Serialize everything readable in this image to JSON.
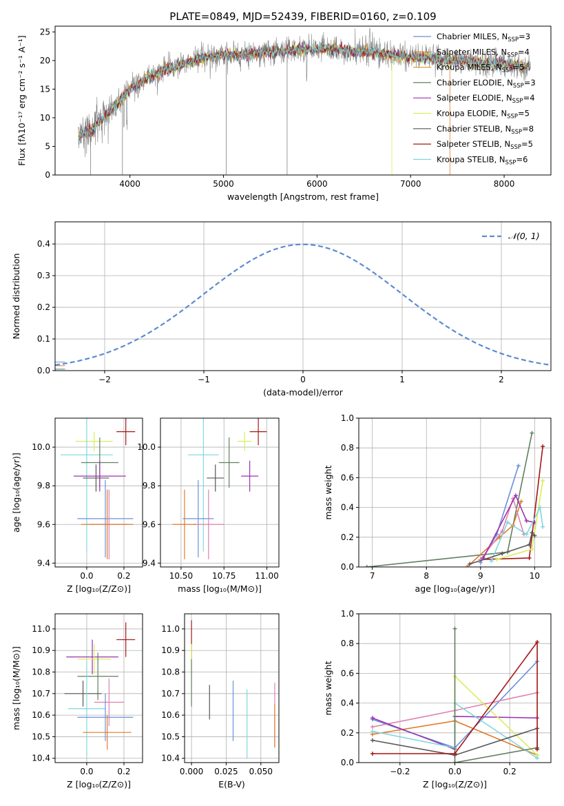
{
  "colors": {
    "chabrier_miles": "#6a8fd8",
    "salpeter_miles": "#e07b2b",
    "kroupa_miles": "#5a8a5a",
    "chabrier_elodie": "#5f7f5f",
    "salpeter_elodie": "#9b30b0",
    "kroupa_elodie": "#d8ee5a",
    "chabrier_stelib": "#555555",
    "salpeter_stelib": "#a31515",
    "kroupa_stelib": "#7fd6dd",
    "pink": "#e080b0",
    "gaussian": "#5b8bd0"
  },
  "chart_data": [
    {
      "id": "spectrum",
      "type": "line",
      "title": "PLATE=0849, MJD=52439, FIBERID=0160, z=0.109",
      "xlabel": "wavelength [Angstrom, rest frame]",
      "ylabel": "Flux [fλ10⁻¹⁷ erg cm⁻² s⁻¹ A⁻¹]",
      "xlim": [
        3200,
        8500
      ],
      "ylim": [
        0,
        26
      ],
      "xticks": [
        4000,
        5000,
        6000,
        7000,
        8000
      ],
      "yticks": [
        0,
        5,
        10,
        15,
        20,
        25
      ],
      "continuum": {
        "x": [
          3450,
          3600,
          3750,
          3900,
          4000,
          4200,
          4400,
          4600,
          4800,
          5000,
          5200,
          5400,
          5600,
          5800,
          6000,
          6200,
          6400,
          6600,
          6800,
          7000,
          7200,
          7400,
          7600,
          7800,
          8000,
          8200,
          8280
        ],
        "y": [
          7,
          8,
          10.5,
          13,
          15,
          17,
          18.5,
          19.5,
          20.5,
          21,
          21,
          21.5,
          21.5,
          22,
          22,
          22,
          21.5,
          21.5,
          21,
          20.5,
          20.5,
          20,
          20,
          19.5,
          19.5,
          19,
          19
        ]
      },
      "legend": [
        {
          "label": "Chabrier MILES, N",
          "sub": "SSP",
          "suffix": "=3",
          "color": "#6a8fd8"
        },
        {
          "label": "Salpeter MILES, N",
          "sub": "SSP",
          "suffix": "=4",
          "color": "#e07b2b"
        },
        {
          "label": "Kroupa MILES, N",
          "sub": "SSP",
          "suffix": "=5",
          "color": "#d8a030"
        },
        {
          "label": "Chabrier ELODIE, N",
          "sub": "SSP",
          "suffix": "=3",
          "color": "#5f7f5f"
        },
        {
          "label": "Salpeter ELODIE, N",
          "sub": "SSP",
          "suffix": "=4",
          "color": "#9b30b0"
        },
        {
          "label": "Kroupa ELODIE, N",
          "sub": "SSP",
          "suffix": "=5",
          "color": "#d8ee5a"
        },
        {
          "label": "Chabrier STELIB, N",
          "sub": "SSP",
          "suffix": "=8",
          "color": "#555555"
        },
        {
          "label": "Salpeter STELIB, N",
          "sub": "SSP",
          "suffix": "=5",
          "color": "#a31515"
        },
        {
          "label": "Kroupa STELIB, N",
          "sub": "SSP",
          "suffix": "=6",
          "color": "#7fd6dd"
        }
      ],
      "legend_position": "right"
    },
    {
      "id": "residuals",
      "type": "line",
      "xlabel": "(data-model)/error",
      "ylabel": "Normed distribution",
      "xlim": [
        -2.5,
        2.5
      ],
      "ylim": [
        0,
        0.47
      ],
      "xticks": [
        -2,
        -1,
        0,
        1,
        2
      ],
      "yticks": [
        0.0,
        0.1,
        0.2,
        0.3,
        0.4
      ],
      "grid": true,
      "legend": [
        {
          "label": "𝒩(0, 1)",
          "color": "#5b8bd0"
        }
      ],
      "legend_position": "top-right"
    },
    {
      "id": "age_vs_Z",
      "type": "scatter",
      "xlabel": "Z [log₁₀(Z/Z⊙)]",
      "ylabel": "age  [log₁₀(age/yr)]",
      "xlim": [
        -0.17,
        0.3
      ],
      "ylim": [
        9.38,
        10.15
      ],
      "xticks": [
        0.0,
        0.2
      ],
      "yticks": [
        9.4,
        9.6,
        9.8,
        10.0
      ],
      "grid": true,
      "points": [
        {
          "x": 0.21,
          "y": 10.08,
          "xerr": 0.05,
          "yerr": 0.07,
          "color": "#a31515"
        },
        {
          "x": 0.04,
          "y": 10.03,
          "xerr": 0.1,
          "yerr": 0.05,
          "color": "#d8ee5a"
        },
        {
          "x": 0.0,
          "y": 9.96,
          "xerr": 0.14,
          "yerr": 0.5,
          "color": "#7fd6dd"
        },
        {
          "x": 0.07,
          "y": 9.92,
          "xerr": 0.1,
          "yerr": 0.13,
          "color": "#5f7f5f"
        },
        {
          "x": 0.07,
          "y": 9.85,
          "xerr": 0.14,
          "yerr": 0.08,
          "color": "#9b30b0"
        },
        {
          "x": 0.05,
          "y": 9.84,
          "xerr": 0.07,
          "yerr": 0.07,
          "color": "#555555"
        },
        {
          "x": 0.1,
          "y": 9.63,
          "xerr": 0.15,
          "yerr": 0.2,
          "color": "#6a8fd8"
        },
        {
          "x": 0.12,
          "y": 9.6,
          "xerr": 0.1,
          "yerr": 0.18,
          "color": "#e080b0"
        },
        {
          "x": 0.11,
          "y": 9.6,
          "xerr": 0.14,
          "yerr": 0.18,
          "color": "#e07b2b"
        }
      ]
    },
    {
      "id": "age_vs_mass",
      "type": "scatter",
      "xlabel": "mass [log₁₀(M/M⊙)]",
      "ylabel": "",
      "xlim": [
        10.38,
        11.07
      ],
      "ylim": [
        9.38,
        10.15
      ],
      "xticks": [
        10.5,
        10.75,
        11.0
      ],
      "yticks": [
        9.4,
        9.6,
        9.8,
        10.0
      ],
      "grid": true,
      "points": [
        {
          "x": 10.95,
          "y": 10.08,
          "xerr": 0.05,
          "yerr": 0.07,
          "color": "#a31515"
        },
        {
          "x": 10.87,
          "y": 10.03,
          "xerr": 0.04,
          "yerr": 0.05,
          "color": "#d8ee5a"
        },
        {
          "x": 10.63,
          "y": 9.96,
          "xerr": 0.09,
          "yerr": 0.5,
          "color": "#7fd6dd"
        },
        {
          "x": 10.78,
          "y": 9.92,
          "xerr": 0.06,
          "yerr": 0.13,
          "color": "#5f7f5f"
        },
        {
          "x": 10.9,
          "y": 9.85,
          "xerr": 0.05,
          "yerr": 0.08,
          "color": "#9b30b0"
        },
        {
          "x": 10.7,
          "y": 9.84,
          "xerr": 0.05,
          "yerr": 0.07,
          "color": "#555555"
        },
        {
          "x": 10.6,
          "y": 9.63,
          "xerr": 0.09,
          "yerr": 0.2,
          "color": "#6a8fd8"
        },
        {
          "x": 10.66,
          "y": 9.6,
          "xerr": 0.09,
          "yerr": 0.18,
          "color": "#e080b0"
        },
        {
          "x": 10.52,
          "y": 9.6,
          "xerr": 0.07,
          "yerr": 0.18,
          "color": "#e07b2b"
        }
      ]
    },
    {
      "id": "weight_vs_age",
      "type": "line",
      "xlabel": "age  [log₁₀(age/yr)]",
      "ylabel": "mass weight",
      "xlim": [
        6.75,
        10.3
      ],
      "ylim": [
        0,
        1.0
      ],
      "xticks": [
        7,
        8,
        9,
        10
      ],
      "yticks": [
        0.0,
        0.2,
        0.4,
        0.6,
        0.8,
        1.0
      ],
      "grid": true,
      "series": [
        {
          "color": "#5f7f5f",
          "x": [
            6.9,
            9.5,
            9.95
          ],
          "y": [
            0.0,
            0.1,
            0.9
          ]
        },
        {
          "color": "#a31515",
          "x": [
            9.0,
            9.9,
            10.15
          ],
          "y": [
            0.05,
            0.06,
            0.81
          ]
        },
        {
          "color": "#6a8fd8",
          "x": [
            9.0,
            9.3,
            9.7
          ],
          "y": [
            0.03,
            0.22,
            0.68
          ]
        },
        {
          "color": "#e07b2b",
          "x": [
            8.75,
            9.35,
            9.6,
            9.75
          ],
          "y": [
            0.0,
            0.2,
            0.28,
            0.44
          ]
        },
        {
          "color": "#e080b0",
          "x": [
            9.0,
            9.4,
            9.6,
            9.8
          ],
          "y": [
            0.05,
            0.24,
            0.46,
            0.22
          ]
        },
        {
          "color": "#9b30b0",
          "x": [
            9.05,
            9.65,
            9.85,
            10.0
          ],
          "y": [
            0.06,
            0.48,
            0.31,
            0.3
          ]
        },
        {
          "color": "#d8ee5a",
          "x": [
            9.3,
            9.95,
            10.15
          ],
          "y": [
            0.05,
            0.12,
            0.58
          ]
        },
        {
          "color": "#7fd6dd",
          "x": [
            9.2,
            9.5,
            9.85,
            10.1,
            10.15
          ],
          "y": [
            0.04,
            0.3,
            0.22,
            0.4,
            0.27
          ]
        },
        {
          "color": "#555555",
          "x": [
            8.8,
            9.4,
            9.9,
            9.95,
            10.0
          ],
          "y": [
            0.02,
            0.09,
            0.15,
            0.23,
            0.21
          ]
        }
      ]
    },
    {
      "id": "mass_vs_Z",
      "type": "scatter",
      "xlabel": "Z [log₁₀(Z/Z⊙)]",
      "ylabel": "mass [log₁₀(M/M⊙)]",
      "xlim": [
        -0.17,
        0.3
      ],
      "ylim": [
        10.38,
        11.07
      ],
      "xticks": [
        0.0,
        0.2
      ],
      "yticks": [
        10.4,
        10.5,
        10.6,
        10.7,
        10.8,
        10.9,
        11.0
      ],
      "grid": true,
      "points": [
        {
          "x": 0.21,
          "y": 10.95,
          "xerr": 0.05,
          "yerr": 0.08,
          "color": "#a31515"
        },
        {
          "x": 0.03,
          "y": 10.87,
          "xerr": 0.14,
          "yerr": 0.08,
          "color": "#9b30b0"
        },
        {
          "x": 0.04,
          "y": 10.86,
          "xerr": 0.09,
          "yerr": 0.07,
          "color": "#d8ee5a"
        },
        {
          "x": 0.06,
          "y": 10.78,
          "xerr": 0.11,
          "yerr": 0.11,
          "color": "#5f7f5f"
        },
        {
          "x": -0.02,
          "y": 10.7,
          "xerr": 0.1,
          "yerr": 0.06,
          "color": "#555555"
        },
        {
          "x": 0.0,
          "y": 10.63,
          "xerr": 0.1,
          "yerr": 0.22,
          "color": "#7fd6dd"
        },
        {
          "x": 0.12,
          "y": 10.66,
          "xerr": 0.08,
          "yerr": 0.11,
          "color": "#e080b0"
        },
        {
          "x": 0.1,
          "y": 10.59,
          "xerr": 0.15,
          "yerr": 0.11,
          "color": "#6a8fd8"
        },
        {
          "x": 0.11,
          "y": 10.52,
          "xerr": 0.13,
          "yerr": 0.08,
          "color": "#e07b2b"
        }
      ]
    },
    {
      "id": "mass_vs_ebv",
      "type": "scatter",
      "xlabel": "E(B-V)",
      "ylabel": "",
      "xlim": [
        -0.005,
        0.063
      ],
      "ylim": [
        10.38,
        11.07
      ],
      "xticks": [
        0.0,
        0.025,
        0.05
      ],
      "yticks": [
        10.4,
        10.5,
        10.6,
        10.7,
        10.8,
        10.9,
        11.0
      ],
      "grid": true,
      "points": [
        {
          "x": 0.0,
          "y": 10.95,
          "xerr": 0,
          "yerr": 0.09,
          "color": "#a31515"
        },
        {
          "x": 0.0,
          "y": 10.86,
          "xerr": 0,
          "yerr": 0.07,
          "color": "#d8ee5a"
        },
        {
          "x": 0.0,
          "y": 10.75,
          "xerr": 0,
          "yerr": 0.11,
          "color": "#5f7f5f"
        },
        {
          "x": 0.013,
          "y": 10.66,
          "xerr": 0,
          "yerr": 0.08,
          "color": "#555555"
        },
        {
          "x": 0.03,
          "y": 10.62,
          "xerr": 0,
          "yerr": 0.14,
          "color": "#6a8fd8"
        },
        {
          "x": 0.04,
          "y": 10.56,
          "xerr": 0,
          "yerr": 0.16,
          "color": "#7fd6dd"
        },
        {
          "x": 0.06,
          "y": 10.6,
          "xerr": 0,
          "yerr": 0.15,
          "color": "#e080b0"
        },
        {
          "x": 0.06,
          "y": 10.55,
          "xerr": 0,
          "yerr": 0.1,
          "color": "#e07b2b"
        }
      ]
    },
    {
      "id": "weight_vs_Z",
      "type": "line",
      "xlabel": "Z [log₁₀(Z/Z⊙)]",
      "ylabel": "mass weight",
      "xlim": [
        -0.35,
        0.35
      ],
      "ylim": [
        0,
        1.0
      ],
      "xticks": [
        -0.2,
        0.0,
        0.2
      ],
      "yticks": [
        0.0,
        0.2,
        0.4,
        0.6,
        0.8,
        1.0
      ],
      "grid": true,
      "series": [
        {
          "color": "#6a8fd8",
          "x": [
            -0.3,
            0.0,
            0.3
          ],
          "y": [
            0.29,
            0.1,
            0.68
          ]
        },
        {
          "color": "#e07b2b",
          "x": [
            -0.3,
            0.0,
            0.3
          ],
          "y": [
            0.19,
            0.28,
            0.05
          ]
        },
        {
          "color": "#e080b0",
          "x": [
            -0.3,
            0.0,
            0.3
          ],
          "y": [
            0.24,
            0.35,
            0.47
          ]
        },
        {
          "color": "#9b30b0",
          "x": [
            -0.3,
            0.0,
            0.0,
            0.3
          ],
          "y": [
            0.3,
            0.09,
            0.31,
            0.3
          ]
        },
        {
          "color": "#d8ee5a",
          "x": [
            0.0,
            0.0,
            0.3
          ],
          "y": [
            0.05,
            0.58,
            0.05
          ]
        },
        {
          "color": "#7fd6dd",
          "x": [
            -0.3,
            0.0,
            0.0,
            0.3
          ],
          "y": [
            0.21,
            0.1,
            0.4,
            0.03
          ]
        },
        {
          "color": "#5f7f5f",
          "x": [
            0.0,
            0.0,
            0.3
          ],
          "y": [
            0.9,
            0.0,
            0.1
          ]
        },
        {
          "color": "#555555",
          "x": [
            -0.3,
            0.0,
            0.3,
            0.3
          ],
          "y": [
            0.15,
            0.05,
            0.23,
            0.09
          ]
        },
        {
          "color": "#a31515",
          "x": [
            -0.3,
            0.0,
            0.3,
            0.3
          ],
          "y": [
            0.06,
            0.06,
            0.81,
            0.09
          ]
        }
      ]
    }
  ]
}
